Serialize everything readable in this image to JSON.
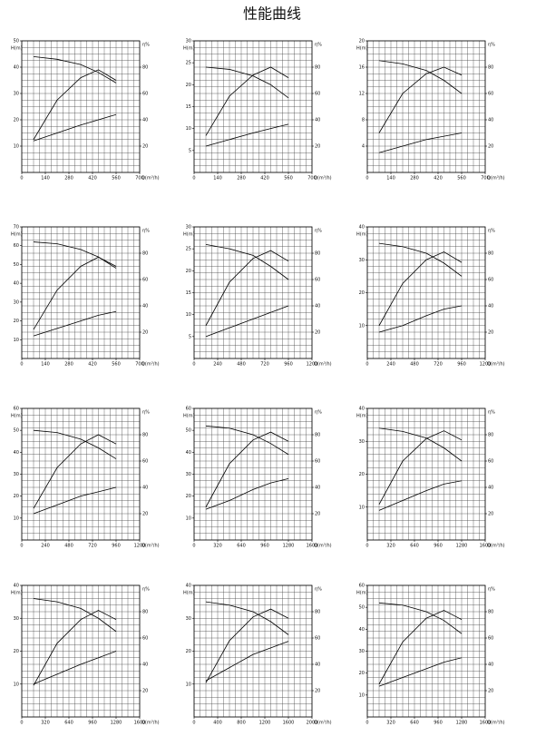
{
  "title": "性能曲线",
  "chart_data": [
    {
      "type": "line",
      "xlabel": "Q(m³/h)",
      "ylabel": "H(m)",
      "y2label": "η%",
      "xlim": [
        0,
        700
      ],
      "xticks": [
        0,
        140,
        280,
        420,
        560,
        700
      ],
      "ylim": [
        0,
        50
      ],
      "yticks": [
        10,
        20,
        30,
        40,
        50
      ],
      "y2lim": [
        0,
        100
      ],
      "y2ticks": [
        20,
        40,
        60,
        80
      ],
      "x": [
        70,
        210,
        350,
        455,
        560
      ],
      "series": [
        {
          "color": "#000",
          "values": [
            44,
            43,
            41,
            38,
            34
          ]
        },
        {
          "color": "#000",
          "axis": "y2",
          "values": [
            25,
            55,
            72,
            78,
            70
          ]
        },
        {
          "color": "#000",
          "values": [
            12,
            15,
            18,
            20,
            22
          ]
        }
      ]
    },
    {
      "type": "line",
      "xlabel": "Q(m³/h)",
      "ylabel": "H(m)",
      "y2label": "η%",
      "xlim": [
        0,
        700
      ],
      "xticks": [
        0,
        140,
        280,
        420,
        560,
        700
      ],
      "ylim": [
        0,
        30
      ],
      "yticks": [
        5,
        10,
        15,
        20,
        25,
        30
      ],
      "y2lim": [
        0,
        100
      ],
      "y2ticks": [
        20,
        40,
        60,
        80
      ],
      "x": [
        70,
        210,
        350,
        455,
        560
      ],
      "series": [
        {
          "color": "#000",
          "values": [
            24,
            23.5,
            22,
            20,
            17
          ]
        },
        {
          "color": "#000",
          "axis": "y2",
          "values": [
            28,
            58,
            74,
            80,
            72
          ]
        },
        {
          "color": "#000",
          "values": [
            6,
            7.5,
            9,
            10,
            11
          ]
        }
      ]
    },
    {
      "type": "line",
      "xlabel": "Q(m³/h)",
      "ylabel": "H(m)",
      "y2label": "η%",
      "xlim": [
        0,
        700
      ],
      "xticks": [
        0,
        140,
        280,
        420,
        560,
        700
      ],
      "ylim": [
        0,
        20
      ],
      "yticks": [
        4,
        8,
        12,
        16,
        20
      ],
      "y2lim": [
        0,
        100
      ],
      "y2ticks": [
        20,
        40,
        60,
        80
      ],
      "x": [
        70,
        210,
        350,
        455,
        560
      ],
      "series": [
        {
          "color": "#000",
          "values": [
            17,
            16.5,
            15.5,
            14,
            12
          ]
        },
        {
          "color": "#000",
          "axis": "y2",
          "values": [
            30,
            60,
            75,
            80,
            74
          ]
        },
        {
          "color": "#000",
          "values": [
            3,
            4,
            5,
            5.5,
            6
          ]
        }
      ]
    },
    {
      "type": "line",
      "xlabel": "Q(m³/h)",
      "ylabel": "H(m)",
      "y2label": "η%",
      "xlim": [
        0,
        700
      ],
      "xticks": [
        0,
        140,
        280,
        420,
        560,
        700
      ],
      "ylim": [
        0,
        70
      ],
      "yticks": [
        10,
        20,
        30,
        40,
        50,
        60,
        70
      ],
      "y2lim": [
        0,
        100
      ],
      "y2ticks": [
        20,
        40,
        60,
        80
      ],
      "x": [
        70,
        210,
        350,
        455,
        560
      ],
      "series": [
        {
          "color": "#000",
          "values": [
            62,
            61,
            58,
            54,
            48
          ]
        },
        {
          "color": "#000",
          "axis": "y2",
          "values": [
            22,
            52,
            70,
            77,
            70
          ]
        },
        {
          "color": "#000",
          "values": [
            12,
            16,
            20,
            23,
            25
          ]
        }
      ]
    },
    {
      "type": "line",
      "xlabel": "Q(m³/h)",
      "ylabel": "H(m)",
      "y2label": "η%",
      "xlim": [
        0,
        1200
      ],
      "xticks": [
        0,
        240,
        480,
        720,
        960,
        1200
      ],
      "ylim": [
        0,
        30
      ],
      "yticks": [
        5,
        10,
        15,
        20,
        25,
        30
      ],
      "y2lim": [
        0,
        100
      ],
      "y2ticks": [
        20,
        40,
        60,
        80
      ],
      "x": [
        120,
        360,
        600,
        780,
        960
      ],
      "series": [
        {
          "color": "#000",
          "values": [
            26,
            25,
            23.5,
            21,
            18
          ]
        },
        {
          "color": "#000",
          "axis": "y2",
          "values": [
            25,
            58,
            76,
            82,
            74
          ]
        },
        {
          "color": "#000",
          "values": [
            5,
            7,
            9,
            10.5,
            12
          ]
        }
      ]
    },
    {
      "type": "line",
      "xlabel": "Q(m³/h)",
      "ylabel": "H(m)",
      "y2label": "η%",
      "xlim": [
        0,
        1200
      ],
      "xticks": [
        0,
        240,
        480,
        720,
        960,
        1200
      ],
      "ylim": [
        0,
        40
      ],
      "yticks": [
        10,
        20,
        30,
        40
      ],
      "y2lim": [
        0,
        100
      ],
      "y2ticks": [
        20,
        40,
        60,
        80
      ],
      "x": [
        120,
        360,
        600,
        780,
        960
      ],
      "series": [
        {
          "color": "#000",
          "values": [
            35,
            34,
            32,
            29,
            25
          ]
        },
        {
          "color": "#000",
          "axis": "y2",
          "values": [
            25,
            57,
            75,
            81,
            73
          ]
        },
        {
          "color": "#000",
          "values": [
            8,
            10,
            13,
            15,
            16
          ]
        }
      ]
    },
    {
      "type": "line",
      "xlabel": "Q(m³/h)",
      "ylabel": "H(m)",
      "y2label": "η%",
      "xlim": [
        0,
        1200
      ],
      "xticks": [
        0,
        240,
        480,
        720,
        960,
        1200
      ],
      "ylim": [
        0,
        60
      ],
      "yticks": [
        10,
        20,
        30,
        40,
        50,
        60
      ],
      "y2lim": [
        0,
        100
      ],
      "y2ticks": [
        20,
        40,
        60,
        80
      ],
      "x": [
        120,
        360,
        600,
        780,
        960
      ],
      "series": [
        {
          "color": "#000",
          "values": [
            50,
            49,
            46,
            42,
            37
          ]
        },
        {
          "color": "#000",
          "axis": "y2",
          "values": [
            24,
            55,
            73,
            80,
            73
          ]
        },
        {
          "color": "#000",
          "values": [
            12,
            16,
            20,
            22,
            24
          ]
        }
      ]
    },
    {
      "type": "line",
      "xlabel": "Q(m³/h)",
      "ylabel": "H(m)",
      "y2label": "η%",
      "xlim": [
        0,
        1600
      ],
      "xticks": [
        0,
        320,
        640,
        960,
        1280,
        1600
      ],
      "ylim": [
        0,
        60
      ],
      "yticks": [
        10,
        20,
        30,
        40,
        50,
        60
      ],
      "y2lim": [
        0,
        100
      ],
      "y2ticks": [
        20,
        40,
        60,
        80
      ],
      "x": [
        160,
        480,
        800,
        1040,
        1280
      ],
      "series": [
        {
          "color": "#000",
          "values": [
            52,
            51,
            48,
            44,
            39
          ]
        },
        {
          "color": "#000",
          "axis": "y2",
          "values": [
            25,
            58,
            76,
            82,
            75
          ]
        },
        {
          "color": "#000",
          "values": [
            14,
            18,
            23,
            26,
            28
          ]
        }
      ]
    },
    {
      "type": "line",
      "xlabel": "Q(m³/h)",
      "ylabel": "H(m)",
      "y2label": "η%",
      "xlim": [
        0,
        1600
      ],
      "xticks": [
        0,
        320,
        640,
        960,
        1280,
        1600
      ],
      "ylim": [
        0,
        40
      ],
      "yticks": [
        10,
        20,
        30,
        40
      ],
      "y2lim": [
        0,
        100
      ],
      "y2ticks": [
        20,
        40,
        60,
        80
      ],
      "x": [
        160,
        480,
        800,
        1040,
        1280
      ],
      "series": [
        {
          "color": "#000",
          "values": [
            34,
            33,
            31,
            28,
            24
          ]
        },
        {
          "color": "#000",
          "axis": "y2",
          "values": [
            27,
            60,
            77,
            83,
            76
          ]
        },
        {
          "color": "#000",
          "values": [
            9,
            12,
            15,
            17,
            18
          ]
        }
      ]
    },
    {
      "type": "line",
      "xlabel": "Q(m³/h)",
      "ylabel": "H(m)",
      "y2label": "η%",
      "xlim": [
        0,
        1600
      ],
      "xticks": [
        0,
        320,
        640,
        960,
        1280,
        1600
      ],
      "ylim": [
        0,
        40
      ],
      "yticks": [
        10,
        20,
        30,
        40
      ],
      "y2lim": [
        0,
        100
      ],
      "y2ticks": [
        20,
        40,
        60,
        80
      ],
      "x": [
        160,
        480,
        800,
        1040,
        1280
      ],
      "series": [
        {
          "color": "#000",
          "values": [
            36,
            35,
            33,
            30,
            26
          ]
        },
        {
          "color": "#000",
          "axis": "y2",
          "values": [
            24,
            56,
            74,
            81,
            74
          ]
        },
        {
          "color": "#000",
          "values": [
            10,
            13,
            16,
            18,
            20
          ]
        }
      ]
    },
    {
      "type": "line",
      "xlabel": "Q(m³/h)",
      "ylabel": "H(m)",
      "y2label": "η%",
      "xlim": [
        0,
        2000
      ],
      "xticks": [
        0,
        400,
        800,
        1200,
        1600,
        2000
      ],
      "ylim": [
        0,
        40
      ],
      "yticks": [
        10,
        20,
        30,
        40
      ],
      "y2lim": [
        0,
        100
      ],
      "y2ticks": [
        20,
        40,
        60,
        80
      ],
      "x": [
        200,
        600,
        1000,
        1300,
        1600
      ],
      "series": [
        {
          "color": "#000",
          "values": [
            35,
            34,
            32,
            29,
            25
          ]
        },
        {
          "color": "#000",
          "axis": "y2",
          "values": [
            26,
            58,
            76,
            82,
            75
          ]
        },
        {
          "color": "#000",
          "values": [
            11,
            15,
            19,
            21,
            23
          ]
        }
      ]
    },
    {
      "type": "line",
      "xlabel": "Q(m³/h)",
      "ylabel": "H(m)",
      "y2label": "η%",
      "xlim": [
        0,
        1600
      ],
      "xticks": [
        0,
        320,
        640,
        960,
        1280,
        1600
      ],
      "ylim": [
        0,
        60
      ],
      "yticks": [
        10,
        20,
        30,
        40,
        50,
        60
      ],
      "y2lim": [
        0,
        100
      ],
      "y2ticks": [
        20,
        40,
        60,
        80
      ],
      "x": [
        160,
        480,
        800,
        1040,
        1280
      ],
      "series": [
        {
          "color": "#000",
          "values": [
            52,
            51,
            48,
            44,
            38
          ]
        },
        {
          "color": "#000",
          "axis": "y2",
          "values": [
            25,
            57,
            75,
            81,
            74
          ]
        },
        {
          "color": "#000",
          "values": [
            14,
            18,
            22,
            25,
            27
          ]
        }
      ]
    }
  ]
}
